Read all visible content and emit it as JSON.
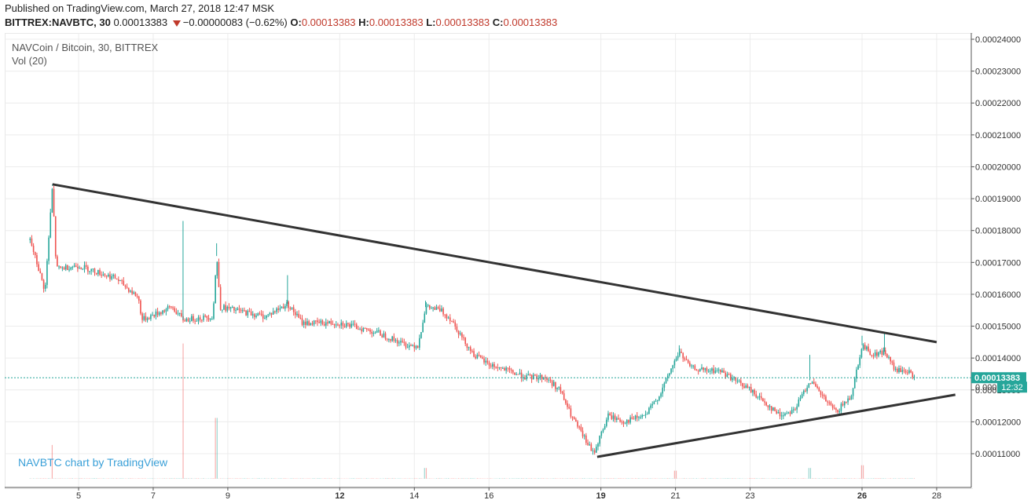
{
  "header": {
    "published": "Published on TradingView.com, March 27, 2018 12:47 MSK",
    "symbol": "BITTREX:NAVBTC, 30",
    "last": "0.00013383",
    "change": "−0.00000083 (−0.62%)",
    "o_label": "O:",
    "o": "0.00013383",
    "h_label": "H:",
    "h": "0.00013383",
    "l_label": "L:",
    "l": "0.00013383",
    "c_label": "C:",
    "c": "0.00013383"
  },
  "legend": {
    "pair": "NAVCoin / Bitcoin, 30, BITTREX",
    "volume": "Vol (20)"
  },
  "watermark": "NAVBTC chart by TradingView",
  "price_tag": {
    "value": "0.00013383",
    "countdown": "12:32",
    "partial": "0.000"
  },
  "colors": {
    "up": "#26a69a",
    "down": "#ef5350",
    "trendline": "#333333",
    "price_line": "#26a69a",
    "grid": "#ececec"
  },
  "chart_data": {
    "type": "candlestick",
    "x_ticks": [
      "5",
      "7",
      "9",
      "12",
      "14",
      "16",
      "19",
      "21",
      "23",
      "26",
      "28"
    ],
    "x_ticks_bold": [
      "12",
      "19",
      "26"
    ],
    "y_ticks": [
      "0.00011000",
      "0.00012000",
      "0.00013000",
      "0.00014000",
      "0.00015000",
      "0.00016000",
      "0.00017000",
      "0.00018000",
      "0.00019000",
      "0.00020000",
      "0.00021000",
      "0.00022000",
      "0.00023000",
      "0.00024000"
    ],
    "ylim": [
      0.0001025,
      0.0002425
    ],
    "xlim_days": [
      3.7,
      28.6
    ],
    "price_path": [
      [
        3.7,
        0.000177
      ],
      [
        4.1,
        0.000161
      ],
      [
        4.3,
        0.000194
      ],
      [
        4.4,
        0.000168
      ],
      [
        5.0,
        0.000169
      ],
      [
        6.0,
        0.000165
      ],
      [
        6.6,
        0.000159
      ],
      [
        6.7,
        0.000152
      ],
      [
        7.5,
        0.000156
      ],
      [
        7.8,
        0.000152
      ],
      [
        8.6,
        0.000153
      ],
      [
        8.7,
        0.000172
      ],
      [
        8.8,
        0.000156
      ],
      [
        10.0,
        0.000153
      ],
      [
        10.6,
        0.000157
      ],
      [
        11.0,
        0.000151
      ],
      [
        12.0,
        0.000151
      ],
      [
        13.0,
        0.000148
      ],
      [
        13.8,
        0.000144
      ],
      [
        14.1,
        0.000144
      ],
      [
        14.3,
        0.000156
      ],
      [
        14.7,
        0.000155
      ],
      [
        15.0,
        0.000152
      ],
      [
        15.3,
        0.000146
      ],
      [
        15.6,
        0.000141
      ],
      [
        16.0,
        0.000138
      ],
      [
        16.5,
        0.000136
      ],
      [
        17.0,
        0.000134
      ],
      [
        17.5,
        0.000134
      ],
      [
        17.9,
        0.00013
      ],
      [
        18.2,
        0.000122
      ],
      [
        18.5,
        0.000116
      ],
      [
        18.8,
        0.00011
      ],
      [
        19.0,
        0.000116
      ],
      [
        19.2,
        0.000122
      ],
      [
        19.6,
        0.00012
      ],
      [
        20.2,
        0.000122
      ],
      [
        20.6,
        0.000129
      ],
      [
        20.9,
        0.000137
      ],
      [
        21.1,
        0.000142
      ],
      [
        21.4,
        0.000137
      ],
      [
        21.8,
        0.000136
      ],
      [
        22.2,
        0.000136
      ],
      [
        22.6,
        0.000133
      ],
      [
        23.0,
        0.00013
      ],
      [
        23.4,
        0.000126
      ],
      [
        23.8,
        0.000122
      ],
      [
        24.2,
        0.000124
      ],
      [
        24.6,
        0.000133
      ],
      [
        25.0,
        0.000127
      ],
      [
        25.3,
        0.000123
      ],
      [
        25.7,
        0.000128
      ],
      [
        26.0,
        0.000144
      ],
      [
        26.3,
        0.000141
      ],
      [
        26.6,
        0.000142
      ],
      [
        26.9,
        0.000136
      ],
      [
        27.2,
        0.000136
      ],
      [
        27.4,
        0.0001338
      ]
    ],
    "volume_spikes": [
      {
        "day": 4.3,
        "value": 0.25
      },
      {
        "day": 7.8,
        "value": 1.0
      },
      {
        "day": 8.7,
        "value": 0.45
      },
      {
        "day": 14.3,
        "value": 0.08
      },
      {
        "day": 21.0,
        "value": 0.06
      },
      {
        "day": 24.6,
        "value": 0.08
      },
      {
        "day": 26.0,
        "value": 0.1
      }
    ],
    "trendlines": [
      {
        "name": "resistance",
        "from": [
          4.3,
          0.0001945
        ],
        "to": [
          28.0,
          0.000145
        ]
      },
      {
        "name": "support",
        "from": [
          18.9,
          0.000109
        ],
        "to": [
          28.5,
          0.0001285
        ]
      }
    ],
    "last_price": 0.00013383
  }
}
